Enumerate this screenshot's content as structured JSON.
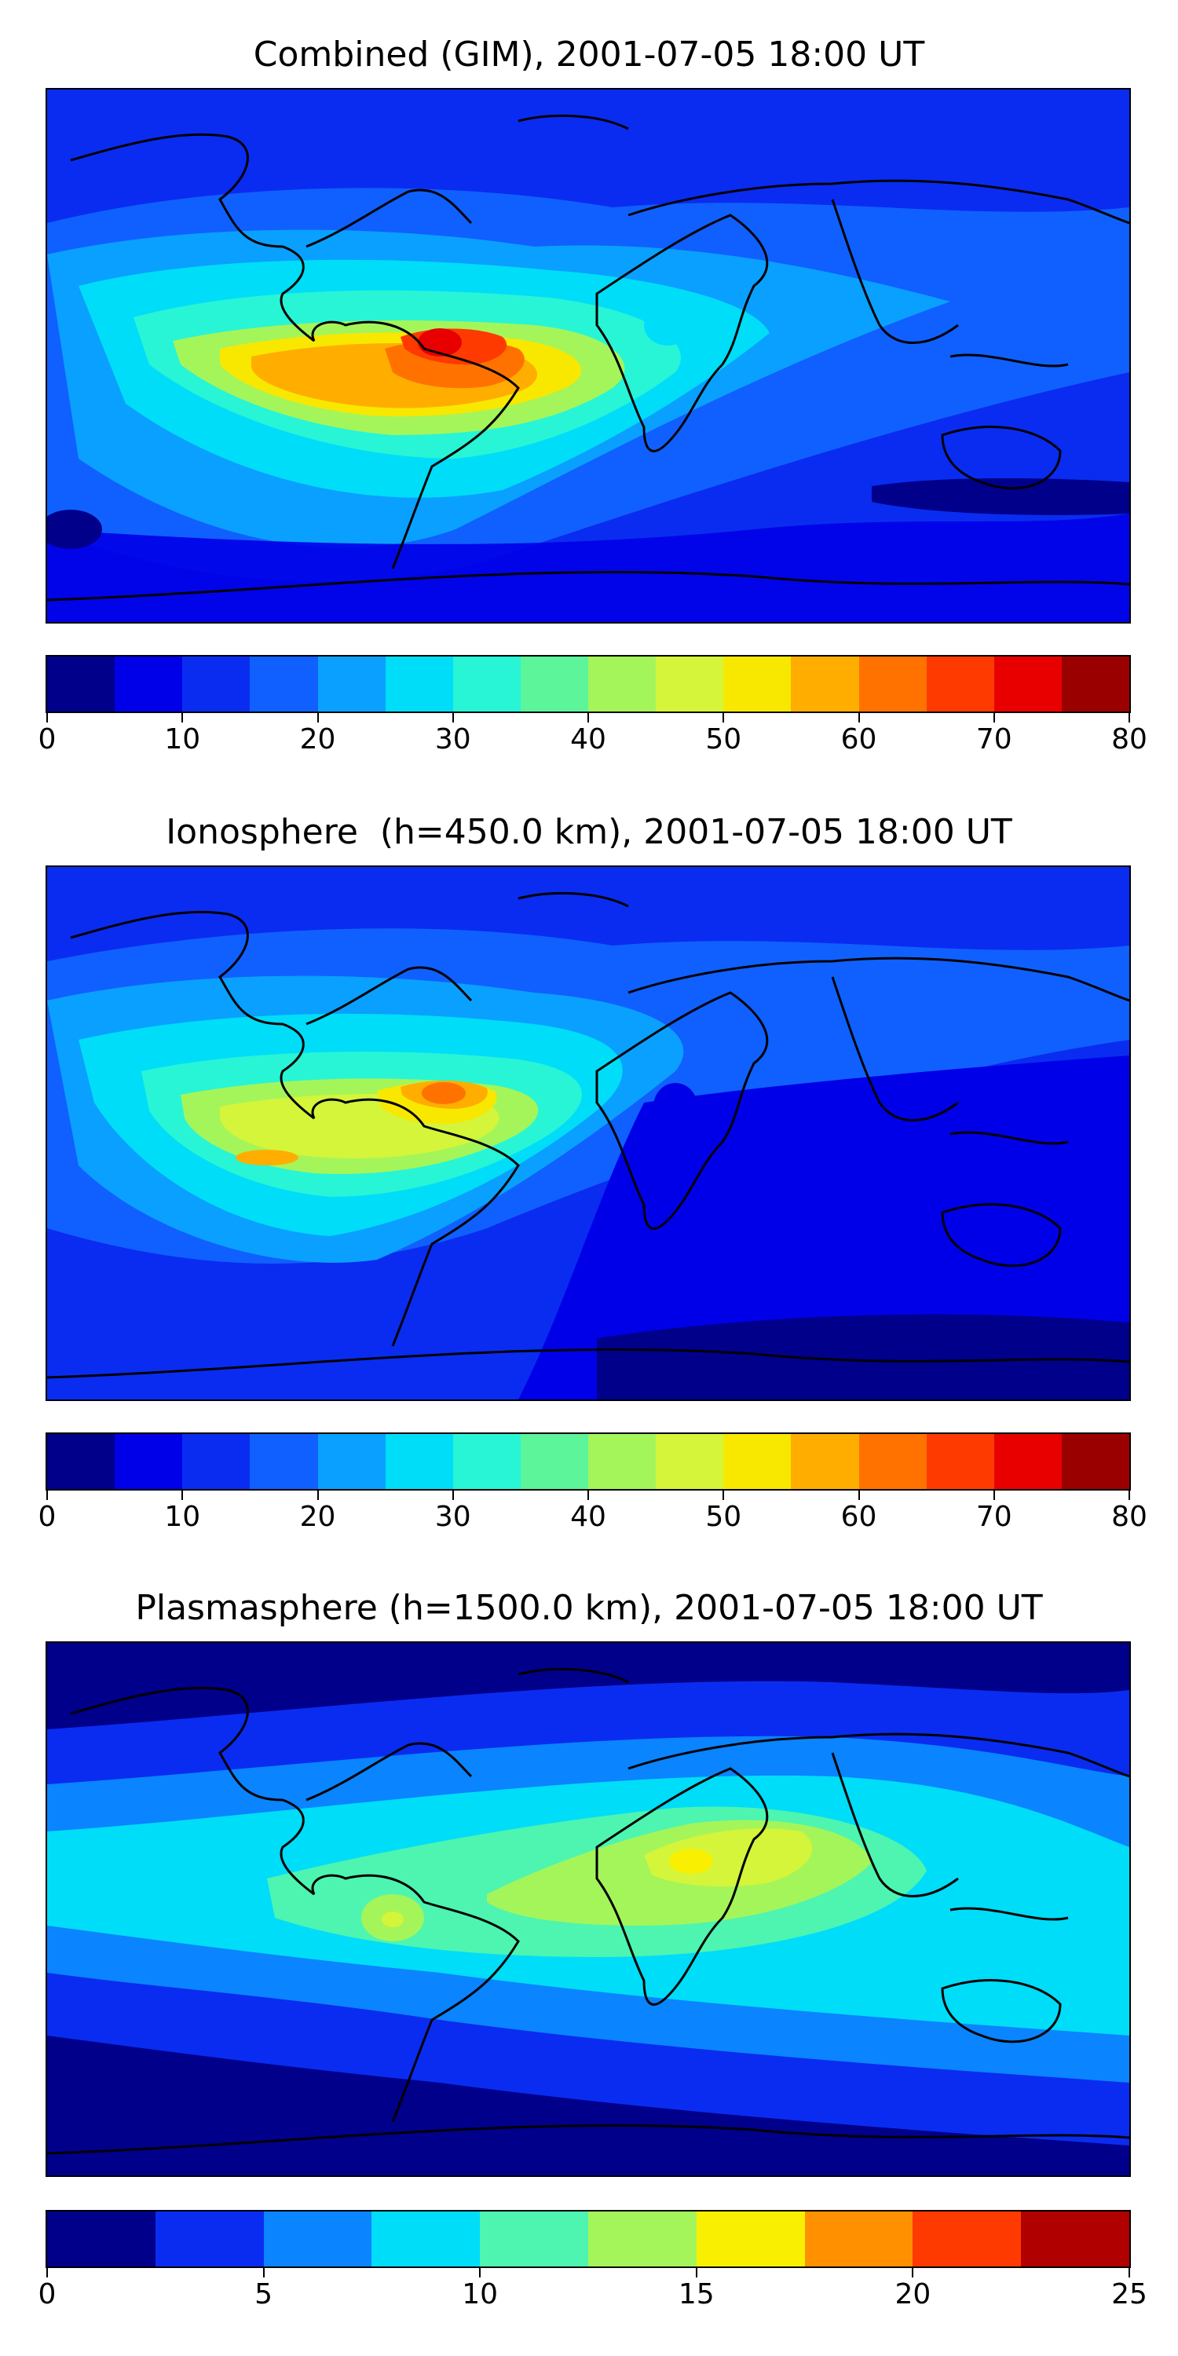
{
  "colors": {
    "jet16": [
      "#00008b",
      "#0000e8",
      "#0a2cf0",
      "#1060ff",
      "#0aa0ff",
      "#00ddf8",
      "#28f5d5",
      "#5cf59a",
      "#a4f55a",
      "#d4f53a",
      "#f8e800",
      "#ffae00",
      "#ff7200",
      "#ff3a00",
      "#e80000",
      "#9b0000"
    ],
    "jet10": [
      "#00008b",
      "#0a2cf0",
      "#0a84ff",
      "#00ddf8",
      "#4df5b0",
      "#a4f55a",
      "#f8f000",
      "#ff9000",
      "#ff3a00",
      "#b00000"
    ],
    "coastline": "#000000"
  },
  "panels": [
    {
      "title": "Combined (GIM), 2001-07-05 18:00 UT",
      "colorbar": {
        "min": 0,
        "max": 80,
        "levels": 16,
        "tick_labels": [
          "0",
          "10",
          "20",
          "30",
          "40",
          "50",
          "60",
          "70",
          "80"
        ]
      },
      "field": "combined"
    },
    {
      "title": "Ionosphere  (h=450.0 km), 2001-07-05 18:00 UT",
      "colorbar": {
        "min": 0,
        "max": 80,
        "levels": 16,
        "tick_labels": [
          "0",
          "10",
          "20",
          "30",
          "40",
          "50",
          "60",
          "70",
          "80"
        ]
      },
      "field": "ionosphere"
    },
    {
      "title": "Plasmasphere (h=1500.0 km), 2001-07-05 18:00 UT",
      "colorbar": {
        "min": 0,
        "max": 25,
        "levels": 10,
        "tick_labels": [
          "0",
          "5",
          "10",
          "15",
          "20",
          "25"
        ]
      },
      "field": "plasmasphere"
    }
  ]
}
